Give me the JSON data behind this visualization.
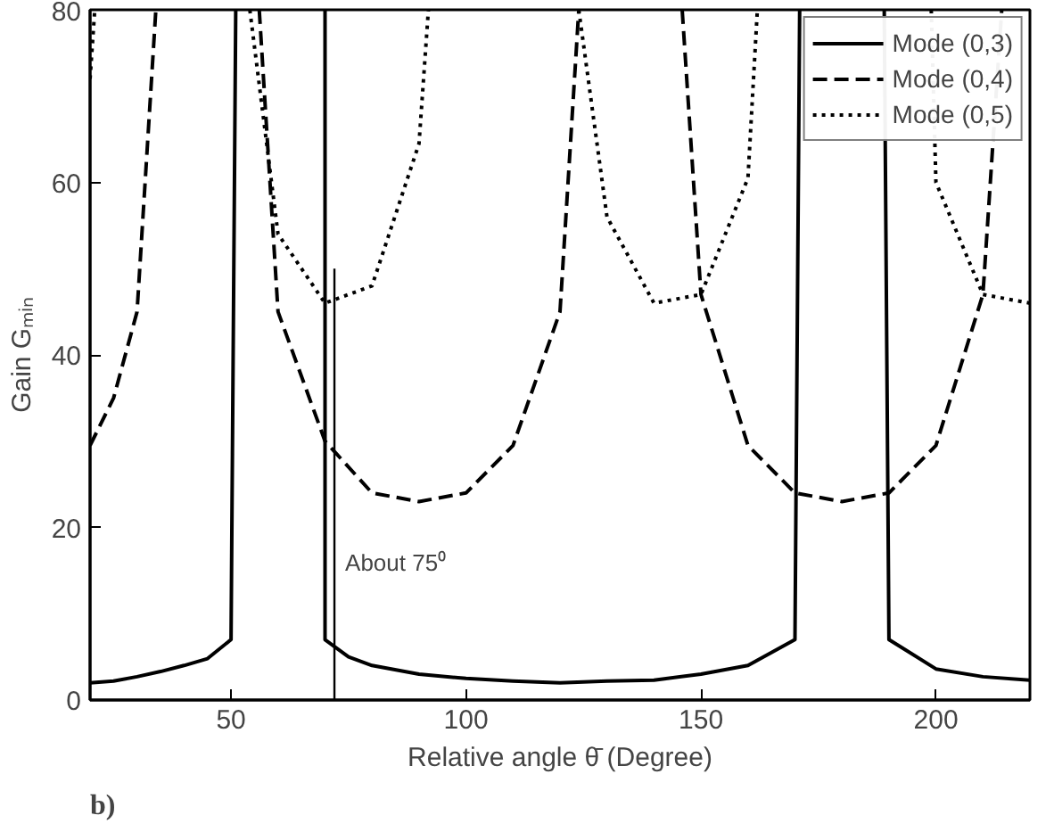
{
  "chart_data": {
    "type": "line",
    "xlabel": "Relative angle θ̄ (Degree)",
    "ylabel": "Gain Gₘᵢₙ",
    "xlim": [
      20,
      220
    ],
    "ylim": [
      0,
      80
    ],
    "xticks": [
      50,
      100,
      150,
      200
    ],
    "yticks": [
      0,
      20,
      40,
      60,
      80
    ],
    "grid": false,
    "legend": "top right",
    "marker": "none",
    "series": [
      {
        "name": "Mode (0,3)",
        "color": "#000000",
        "line_style": "solid",
        "x": [
          20,
          25,
          30,
          35,
          40,
          45,
          50,
          51,
          null,
          70,
          70,
          75,
          80,
          90,
          100,
          110,
          120,
          130,
          140,
          150,
          160,
          170,
          171,
          null,
          189,
          190,
          200,
          210,
          220
        ],
        "values": [
          2,
          2.2,
          2.7,
          3.3,
          4,
          4.8,
          7,
          80,
          null,
          80,
          7,
          5,
          4,
          3,
          2.5,
          2.2,
          2,
          2.2,
          2.3,
          3,
          4,
          7,
          80,
          null,
          80,
          7,
          3.6,
          2.7,
          2.3
        ]
      },
      {
        "name": "Mode (0,4)",
        "color": "#000000",
        "line_style": "dashed",
        "x": [
          20,
          25,
          30,
          34,
          null,
          56,
          60,
          70,
          80,
          90,
          100,
          110,
          120,
          124,
          null,
          146,
          150,
          160,
          170,
          180,
          190,
          200,
          210,
          214
        ],
        "values": [
          29.5,
          35,
          45,
          80,
          null,
          80,
          45,
          30,
          24,
          23,
          24,
          29.5,
          45,
          80,
          null,
          80,
          47,
          29.5,
          24,
          23,
          24,
          29.5,
          47,
          80
        ]
      },
      {
        "name": "Mode (0,5)",
        "color": "#000000",
        "line_style": "dotted",
        "x": [
          20,
          21,
          null,
          54,
          60,
          70,
          80,
          90,
          92,
          null,
          124,
          130,
          140,
          150,
          160,
          162,
          null,
          199,
          200,
          210,
          220
        ],
        "values": [
          72,
          80,
          null,
          80,
          54,
          46,
          48,
          64.5,
          80,
          null,
          80,
          56,
          46,
          47,
          60.5,
          80,
          null,
          80,
          60,
          47,
          46
        ]
      }
    ],
    "ref_lines": [
      {
        "axis": "x",
        "value": 72,
        "label": "About 75⁰"
      }
    ],
    "annotations": [
      "b)"
    ]
  }
}
